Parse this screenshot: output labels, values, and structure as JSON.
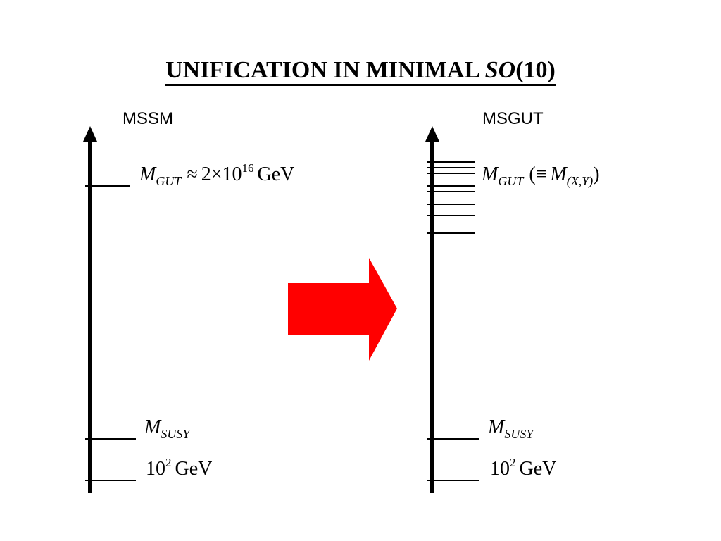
{
  "title": {
    "main": "UNIFICATION IN MINIMAL ",
    "italic": "SO",
    "suffix": "(10)"
  },
  "columns": {
    "left": {
      "header": "MSSM",
      "gut": {
        "symbol": "M",
        "subscript": "GUT",
        "relation": "≈",
        "coefficient": "2",
        "times": "×",
        "base": "10",
        "exponent": "16",
        "unit": "GeV"
      },
      "susy": {
        "symbol": "M",
        "subscript": "SUSY"
      },
      "low": {
        "base": "10",
        "exponent": "2",
        "unit": "GeV"
      }
    },
    "right": {
      "header": "MSGUT",
      "gut": {
        "symbol": "M",
        "subscript": "GUT",
        "open": "(≡",
        "inner_symbol": "M",
        "inner_subscript": "(X,Y)",
        "close": ")"
      },
      "susy": {
        "symbol": "M",
        "subscript": "SUSY"
      },
      "low": {
        "base": "10",
        "exponent": "2",
        "unit": "GeV"
      }
    }
  },
  "colors": {
    "arrow": "#ff0000",
    "lines": "#000000"
  }
}
